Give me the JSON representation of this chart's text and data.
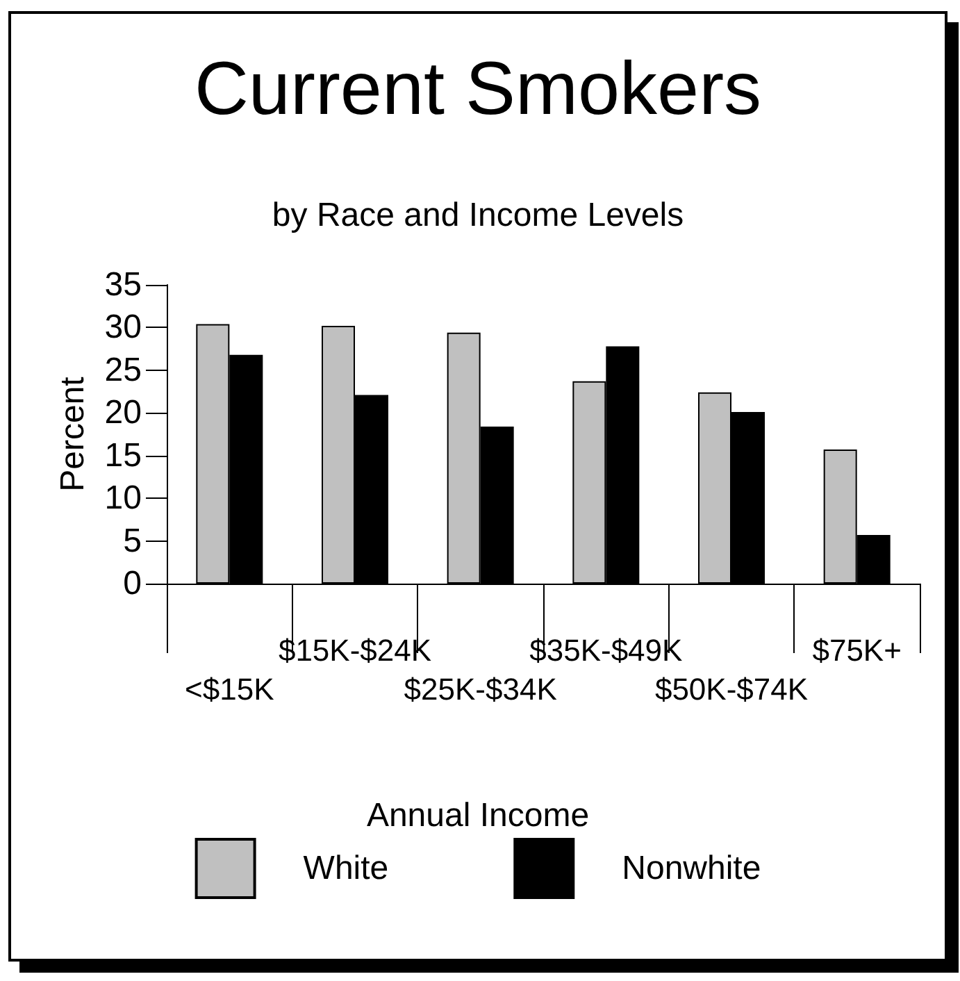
{
  "chart_data": {
    "type": "bar",
    "title": "Current Smokers",
    "subtitle": "by Race and Income Levels",
    "xlabel": "Annual Income",
    "ylabel": "Percent",
    "categories": [
      "<$15K",
      "$15K-$24K",
      "$25K-$34K",
      "$35K-$49K",
      "$50K-$74K",
      "$75K+"
    ],
    "series": [
      {
        "name": "White",
        "color": "#c0c0c0",
        "values": [
          30.4,
          30.2,
          29.4,
          23.7,
          22.4,
          15.7
        ]
      },
      {
        "name": "Nonwhite",
        "color": "#000000",
        "values": [
          26.8,
          22.1,
          18.4,
          27.8,
          20.1,
          5.7
        ]
      }
    ],
    "ylim": [
      0,
      35
    ],
    "yticks": [
      0,
      5,
      10,
      15,
      20,
      25,
      30,
      35
    ],
    "grid": false,
    "legend": "bottom"
  }
}
